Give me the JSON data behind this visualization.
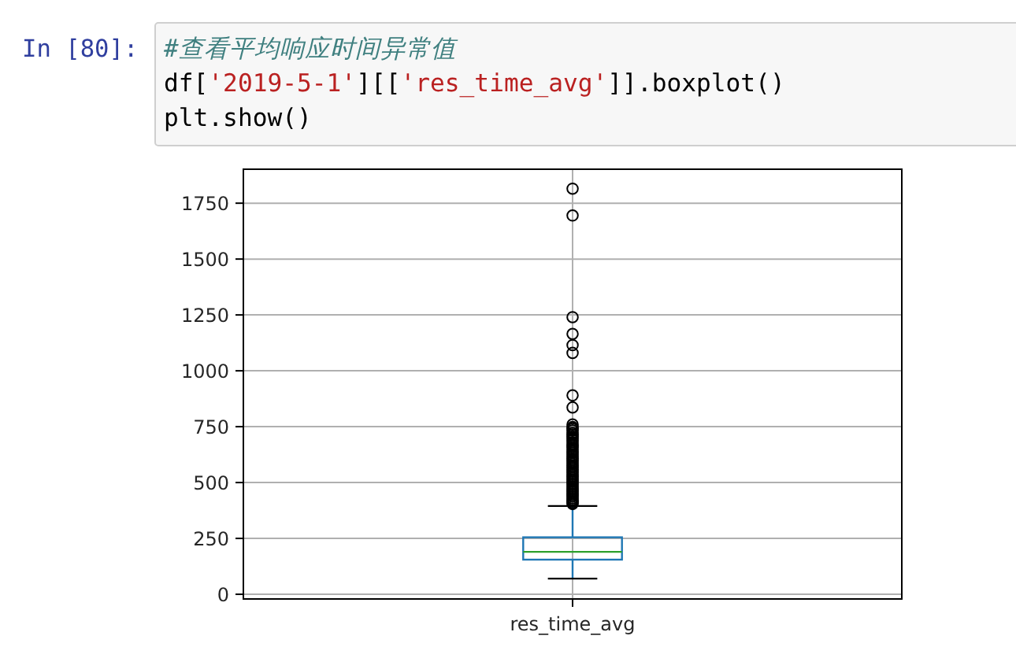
{
  "chart_data": {
    "type": "box",
    "categories": [
      "res_time_avg"
    ],
    "color": "#1f77b4",
    "marker": "circle",
    "grid": true,
    "ylim": [
      -21,
      1902
    ],
    "yticks": [
      0,
      250,
      500,
      750,
      1000,
      1250,
      1500,
      1750
    ],
    "boxes": [
      {
        "low": 70,
        "q1": 155,
        "median": 190,
        "q3": 255,
        "high": 395,
        "outliers": [
          1815,
          1695,
          1240,
          1165,
          1115,
          1080,
          890,
          836,
          760,
          748,
          741,
          733,
          722,
          715,
          706,
          698,
          690,
          681,
          672,
          665,
          657,
          648,
          640,
          633,
          624,
          615,
          607,
          600,
          592,
          584,
          575,
          568,
          560,
          551,
          543,
          535,
          528,
          520,
          512,
          505,
          497,
          490,
          482,
          475,
          468,
          460,
          452,
          445,
          438,
          430,
          423,
          416,
          410,
          404
        ]
      }
    ],
    "annotations": [
      "In [80]:",
      "#查看平均响应时间异常值",
      "df['2019-5-1'][['res_time_avg']].boxplot()",
      "plt.show()"
    ]
  }
}
